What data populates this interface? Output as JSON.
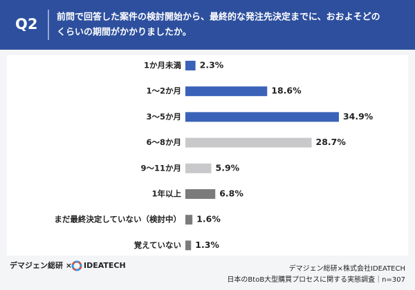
{
  "header": {
    "badge": "Q2",
    "question": [
      "前問で回答した案件の検討開始から、最終的な発注先決定までに、おおよそどの",
      "くらいの期間がかかりましたか。"
    ]
  },
  "chart_data": {
    "type": "bar",
    "orientation": "horizontal",
    "categories": [
      "1か月未満",
      "1〜2か月",
      "3〜5か月",
      "6〜8か月",
      "9〜11か月",
      "1年以上",
      "まだ最終決定していない（検討中）",
      "覚えていない"
    ],
    "values": [
      2.3,
      18.6,
      34.9,
      28.7,
      5.9,
      6.8,
      1.6,
      1.3
    ],
    "value_labels": [
      "2.3%",
      "18.6%",
      "34.9%",
      "28.7%",
      "5.9%",
      "6.8%",
      "1.6%",
      "1.3%"
    ],
    "colors": [
      "#3a62b8",
      "#3a62b8",
      "#3a62b8",
      "#c9c9cc",
      "#c9c9cc",
      "#7b7b7b",
      "#7b7b7b",
      "#7b7b7b"
    ]
  },
  "footer": {
    "left": "デマジェン総研 ×",
    "logo": "IDEATECH",
    "right": [
      "デマジェン総研×株式会社IDEATECH",
      "日本のBtoB大型購買プロセスに関する実態調査｜n=307"
    ]
  }
}
